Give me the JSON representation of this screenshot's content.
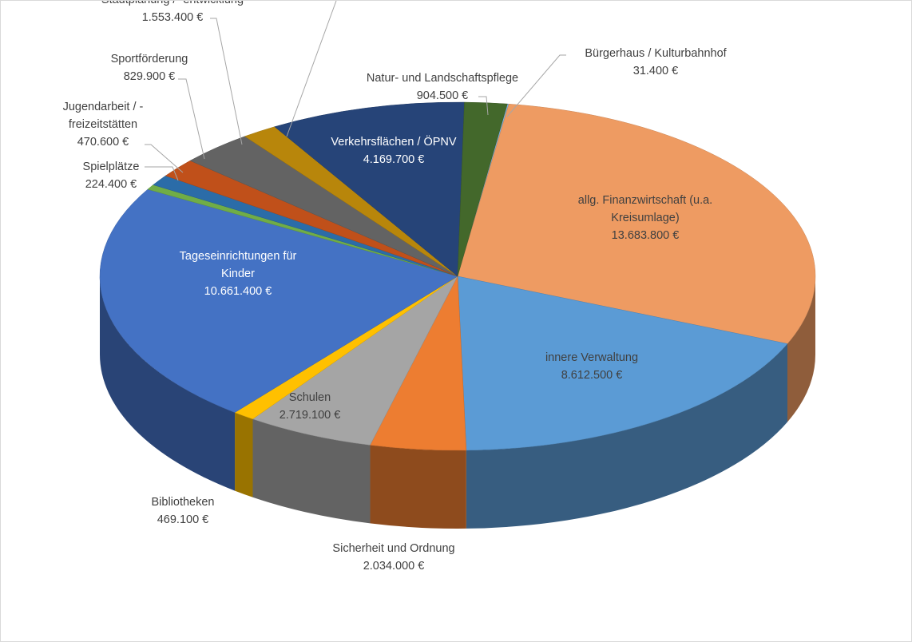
{
  "chart_data": {
    "type": "pie",
    "style": "3d",
    "currency": "€",
    "slices": [
      {
        "label": "Bürgerhaus / Kulturbahnhof",
        "value": 31400,
        "value_label": "31.400 €",
        "color": "#7CAFDD"
      },
      {
        "label": "allg. Finanzwirtschaft (u.a. Kreisumlage)",
        "value": 13683800,
        "value_label": "13.683.800 €",
        "color": "#EE9B62"
      },
      {
        "label": "innere Verwaltung",
        "value": 8612500,
        "value_label": "8.612.500 €",
        "color": "#5B9BD5"
      },
      {
        "label": "Sicherheit und Ordnung",
        "value": 2034000,
        "value_label": "2.034.000 €",
        "color": "#ED7D31"
      },
      {
        "label": "Schulen",
        "value": 2719100,
        "value_label": "2.719.100 €",
        "color": "#A5A5A5"
      },
      {
        "label": "Bibliotheken",
        "value": 469100,
        "value_label": "469.100 €",
        "color": "#FFC000"
      },
      {
        "label": "Tageseinrichtungen für Kinder",
        "value": 10661400,
        "value_label": "10.661.400 €",
        "color": "#4472C4"
      },
      {
        "label": "Spielplätze",
        "value": 224400,
        "value_label": "224.400 €",
        "color": "#70AD47"
      },
      {
        "label": "Jugendarbeit / -freizeitstätten",
        "value": 470600,
        "value_label": "470.600 €",
        "color": "#2B6CA8"
      },
      {
        "label": "Sportförderung",
        "value": 829900,
        "value_label": "829.900 €",
        "color": "#C0501A"
      },
      {
        "label": "Stadtplanung / -entwicklung",
        "value": 1553400,
        "value_label": "1.553.400 €",
        "color": "#636363"
      },
      {
        "label": "",
        "value": 750000,
        "value_label": "",
        "color": "#B8860B"
      },
      {
        "label": "Verkehrsflächen / ÖPNV",
        "value": 4169700,
        "value_label": "4.169.700 €",
        "color": "#264478"
      },
      {
        "label": "Natur- und Landschaftspflege",
        "value": 904500,
        "value_label": "904.500 €",
        "color": "#43682B"
      }
    ]
  }
}
